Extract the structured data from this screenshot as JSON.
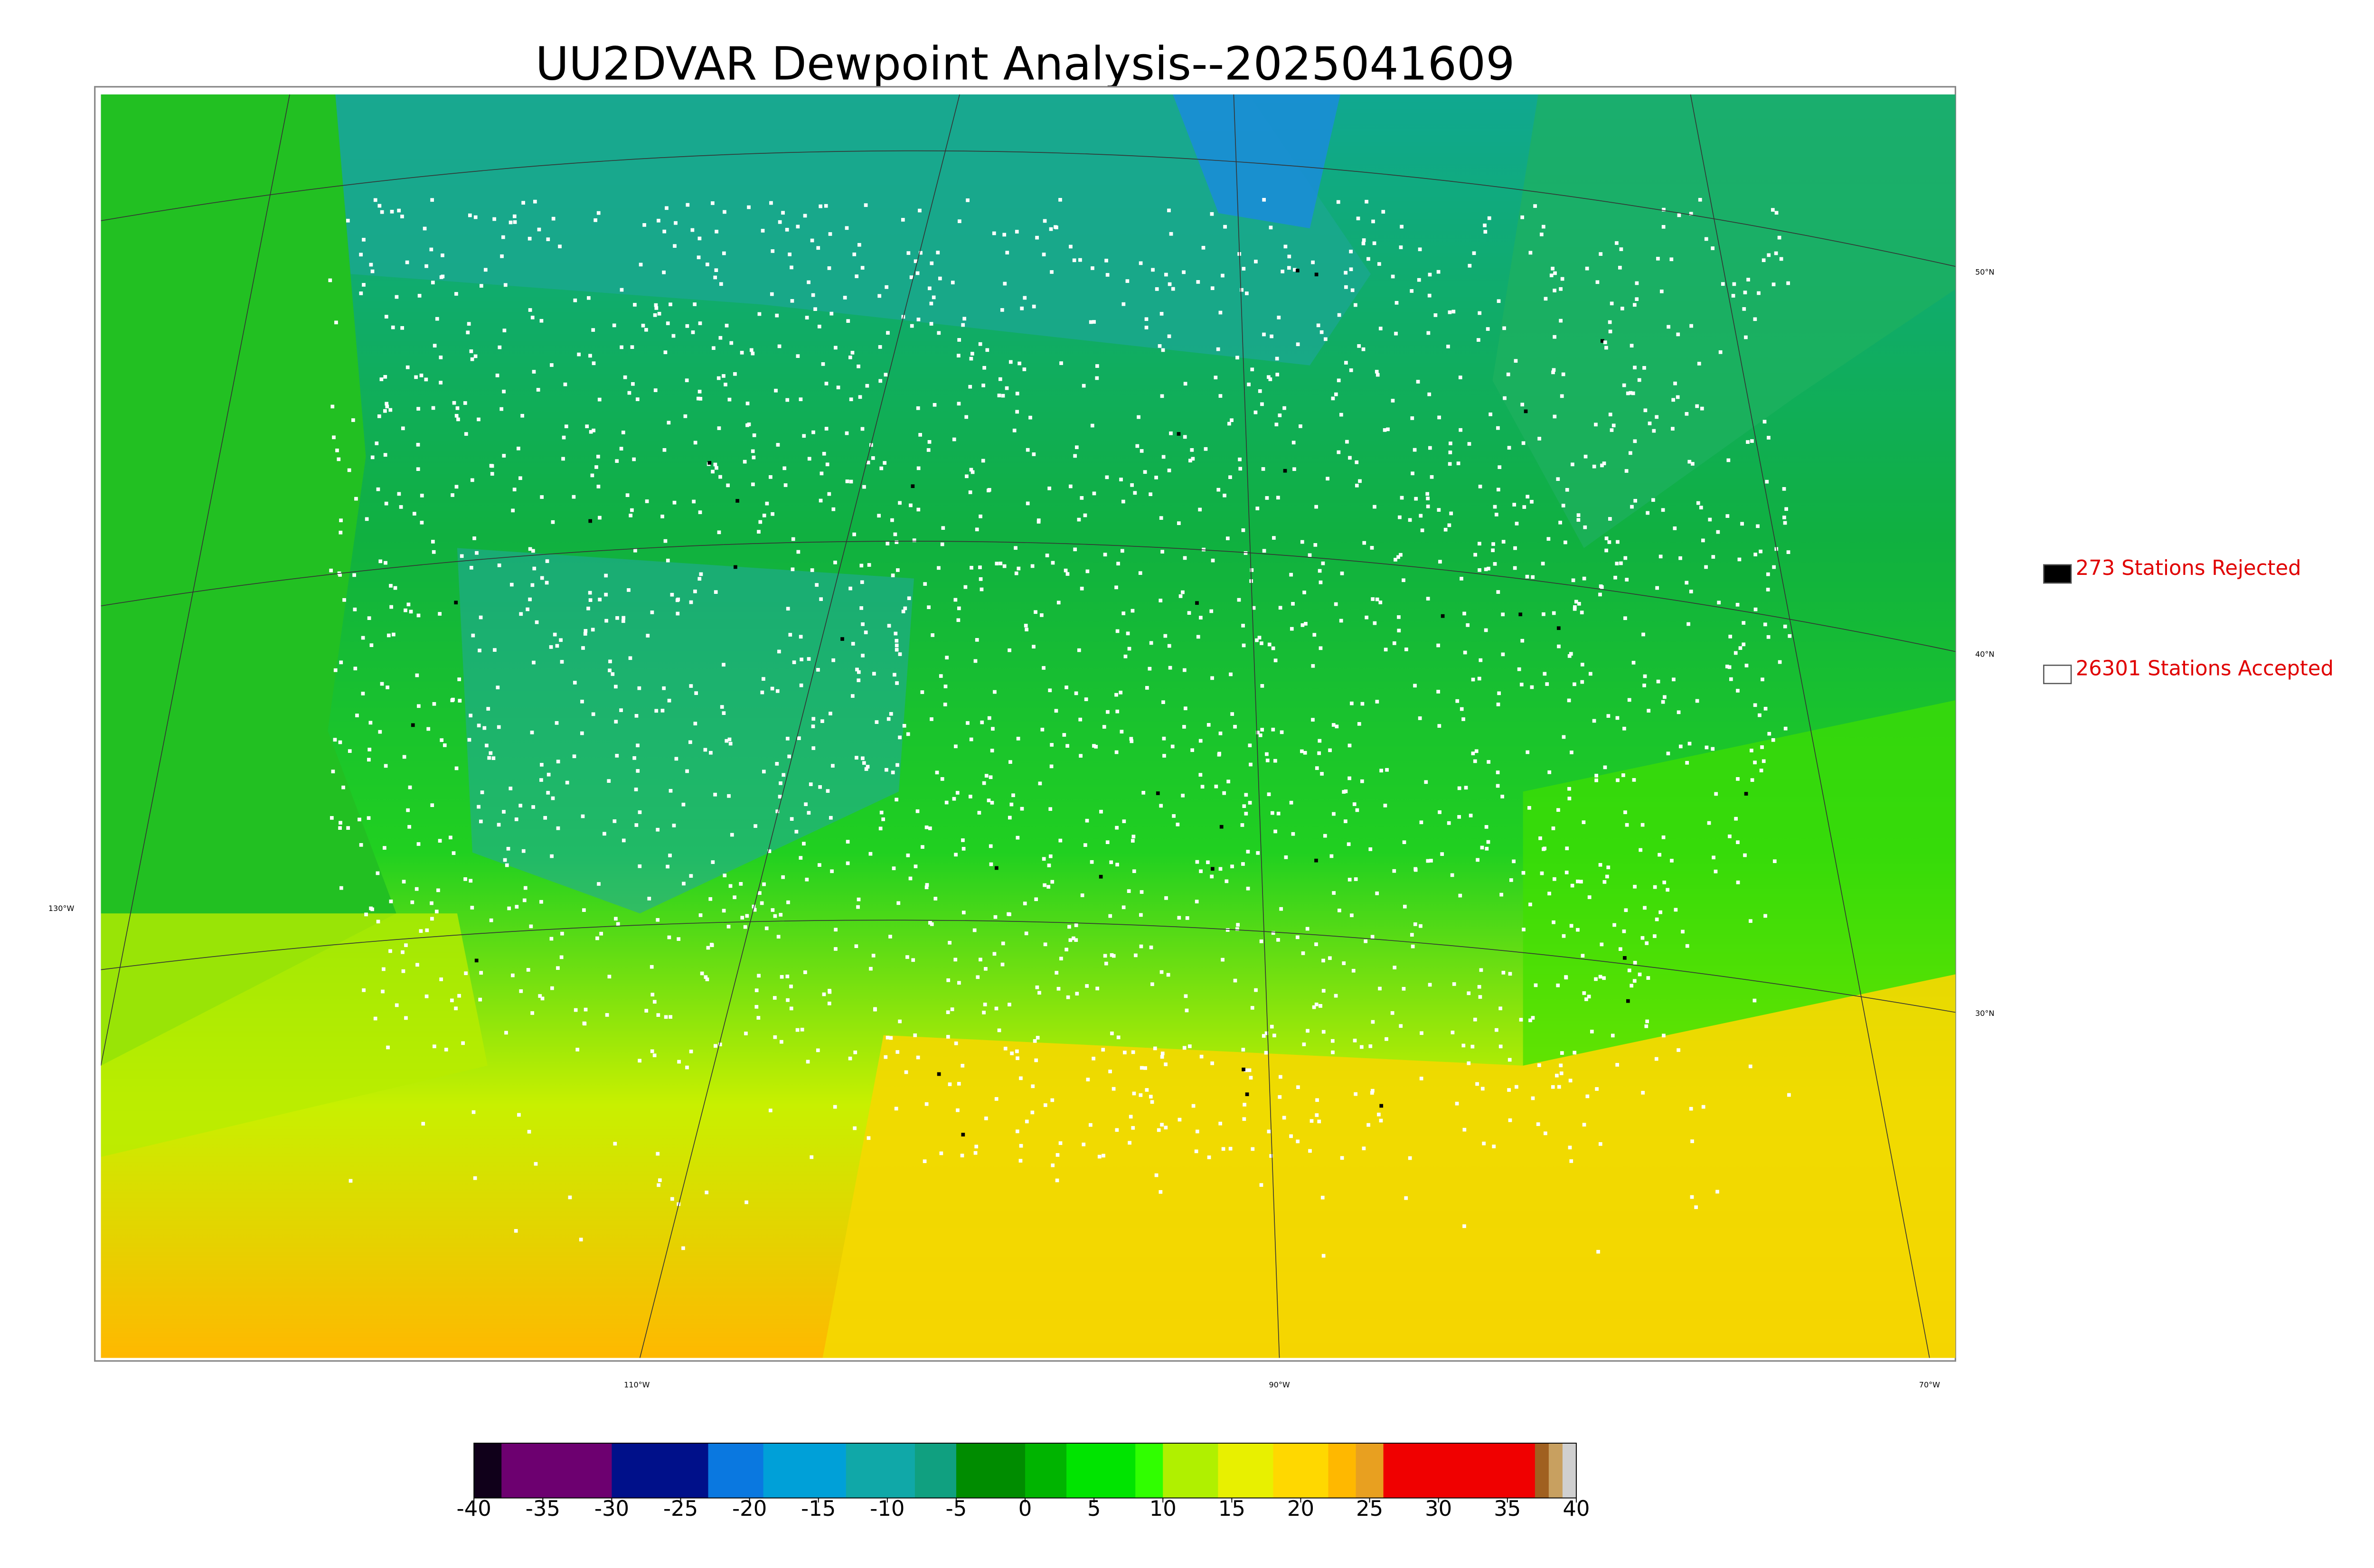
{
  "title": "UU2DVAR Dewpoint Analysis--2025041609",
  "legend": [
    {
      "label": "273 Stations Rejected",
      "color": "#000000"
    },
    {
      "label": "26301 Stations Accepted",
      "color": "#ffffff"
    }
  ],
  "colorbar": {
    "range": [
      -40,
      40
    ],
    "ticks": [
      -40,
      -35,
      -30,
      -25,
      -20,
      -15,
      -10,
      -5,
      0,
      5,
      10,
      15,
      20,
      25,
      30,
      35,
      40
    ],
    "segments": [
      {
        "from": -40,
        "color": "#10001a"
      },
      {
        "from": -38,
        "color": "#6d0070"
      },
      {
        "from": -30,
        "color": "#00108a"
      },
      {
        "from": -23,
        "color": "#0a78e0"
      },
      {
        "from": -19,
        "color": "#00a0d8"
      },
      {
        "from": -13,
        "color": "#10a8a8"
      },
      {
        "from": -8,
        "color": "#10a080"
      },
      {
        "from": -5,
        "color": "#008c00"
      },
      {
        "from": 0,
        "color": "#00b400"
      },
      {
        "from": 3,
        "color": "#00e400"
      },
      {
        "from": 8,
        "color": "#30ff00"
      },
      {
        "from": 10,
        "color": "#b0f000"
      },
      {
        "from": 14,
        "color": "#e8f000"
      },
      {
        "from": 18,
        "color": "#ffd800"
      },
      {
        "from": 22,
        "color": "#ffb800"
      },
      {
        "from": 24,
        "color": "#e8a020"
      },
      {
        "from": 26,
        "color": "#f00000"
      },
      {
        "from": 37,
        "color": "#a06020"
      },
      {
        "from": 38,
        "color": "#c8a060"
      },
      {
        "from": 39,
        "color": "#d0d0d0"
      }
    ]
  },
  "graticule": {
    "lat_labels": [
      "50°N",
      "40°N",
      "30°N",
      "130°W"
    ],
    "lon_labels": [
      "110°W",
      "90°W",
      "70°W"
    ]
  }
}
